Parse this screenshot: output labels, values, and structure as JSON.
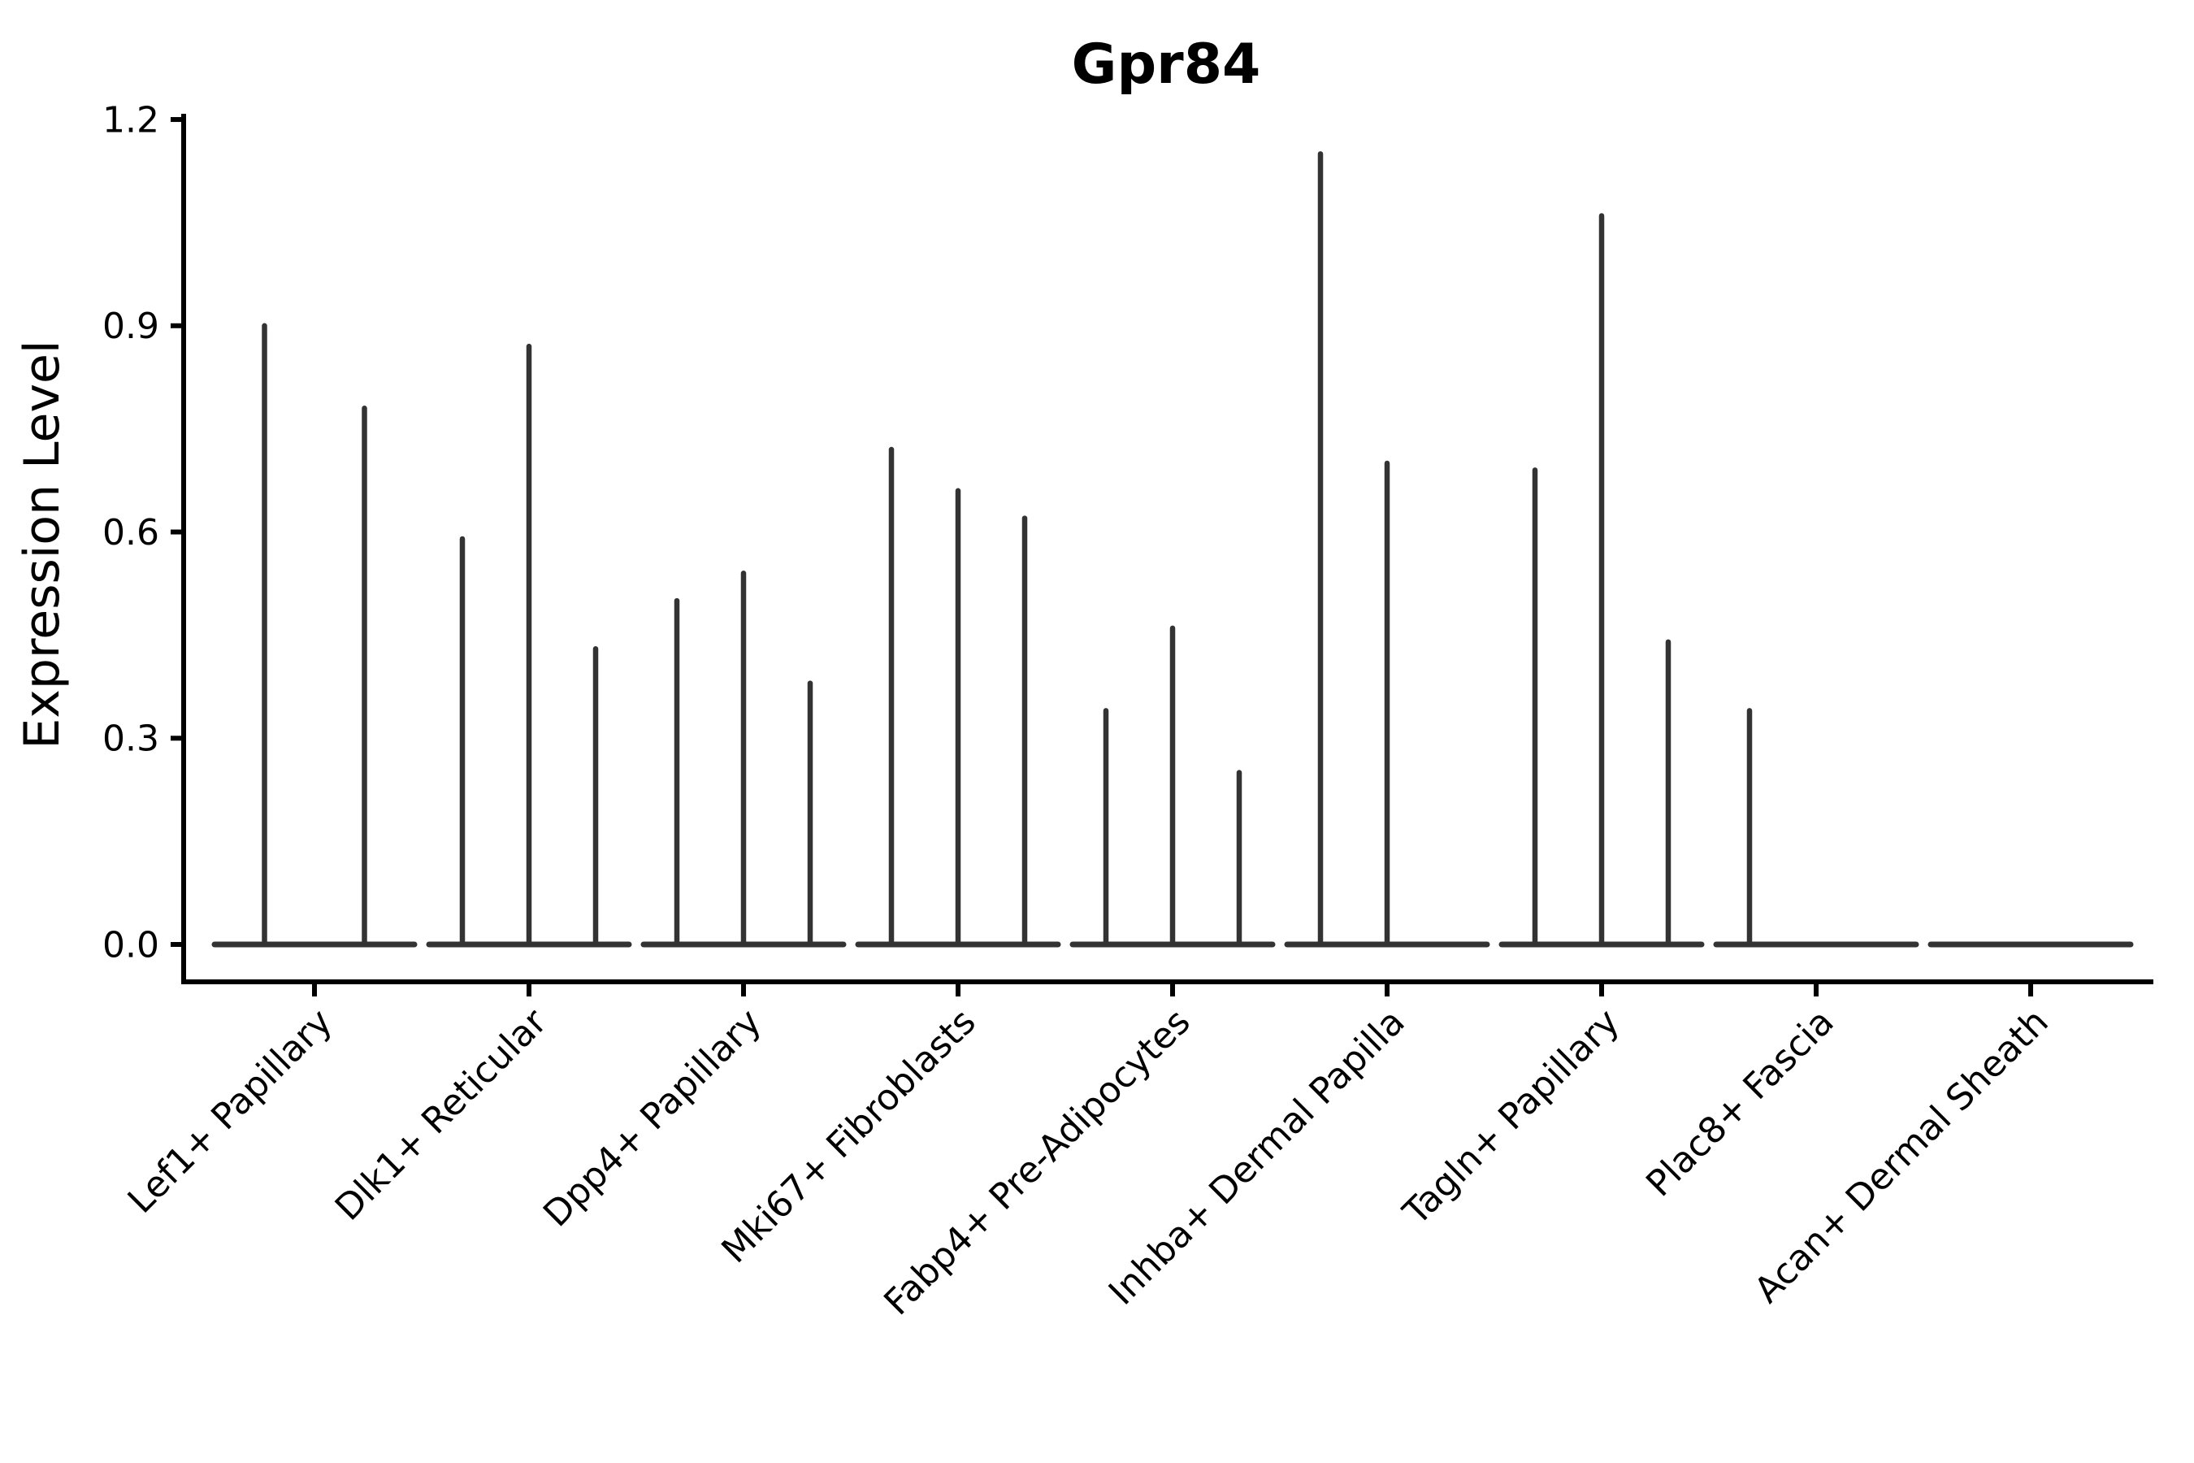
{
  "chart_data": {
    "type": "violin",
    "title": "Gpr84",
    "xlabel": "",
    "ylabel": "Expression Level",
    "ylim": [
      0,
      1.2
    ],
    "yticks": [
      "0.0",
      "0.3",
      "0.6",
      "0.9",
      "1.2"
    ],
    "ytick_values": [
      0.0,
      0.3,
      0.6,
      0.9,
      1.2
    ],
    "grid": false,
    "legend_position": "none",
    "description": "Each category holds 2-3 ultra-thin violins: a flat base at expression 0 with a narrow spike up to the maximum expression value. Spike value 0 means a flat violin with no spike.",
    "categories": [
      "Lef1+ Papillary",
      "Dlk1+ Reticular",
      "Dpp4+ Papillary",
      "Mki67+ Fibroblasts",
      "Fabp4+ Pre-Adipocytes",
      "Inhba+ Dermal Papilla",
      "Tagln+ Papillary",
      "Plac8+ Fascia",
      "Acan+ Dermal Sheath"
    ],
    "violins": [
      {
        "category": "Lef1+ Papillary",
        "spikes": [
          0.9,
          0.78
        ]
      },
      {
        "category": "Dlk1+ Reticular",
        "spikes": [
          0.59,
          0.87,
          0.43
        ]
      },
      {
        "category": "Dpp4+ Papillary",
        "spikes": [
          0.5,
          0.54,
          0.38
        ]
      },
      {
        "category": "Mki67+ Fibroblasts",
        "spikes": [
          0.72,
          0.66,
          0.62
        ]
      },
      {
        "category": "Fabp4+ Pre-Adipocytes",
        "spikes": [
          0.34,
          0.46,
          0.25
        ]
      },
      {
        "category": "Inhba+ Dermal Papilla",
        "spikes": [
          1.15,
          0.7,
          0.0
        ]
      },
      {
        "category": "Tagln+ Papillary",
        "spikes": [
          0.69,
          1.06,
          0.44
        ]
      },
      {
        "category": "Plac8+ Fascia",
        "spikes": [
          0.34,
          0.0,
          0.0
        ]
      },
      {
        "category": "Acan+ Dermal Sheath",
        "spikes": [
          0.0,
          0.0,
          0.0
        ]
      }
    ],
    "colors": {
      "violin_stroke": "#333333",
      "axis": "#000000",
      "text": "#000000",
      "background": "#ffffff"
    }
  }
}
